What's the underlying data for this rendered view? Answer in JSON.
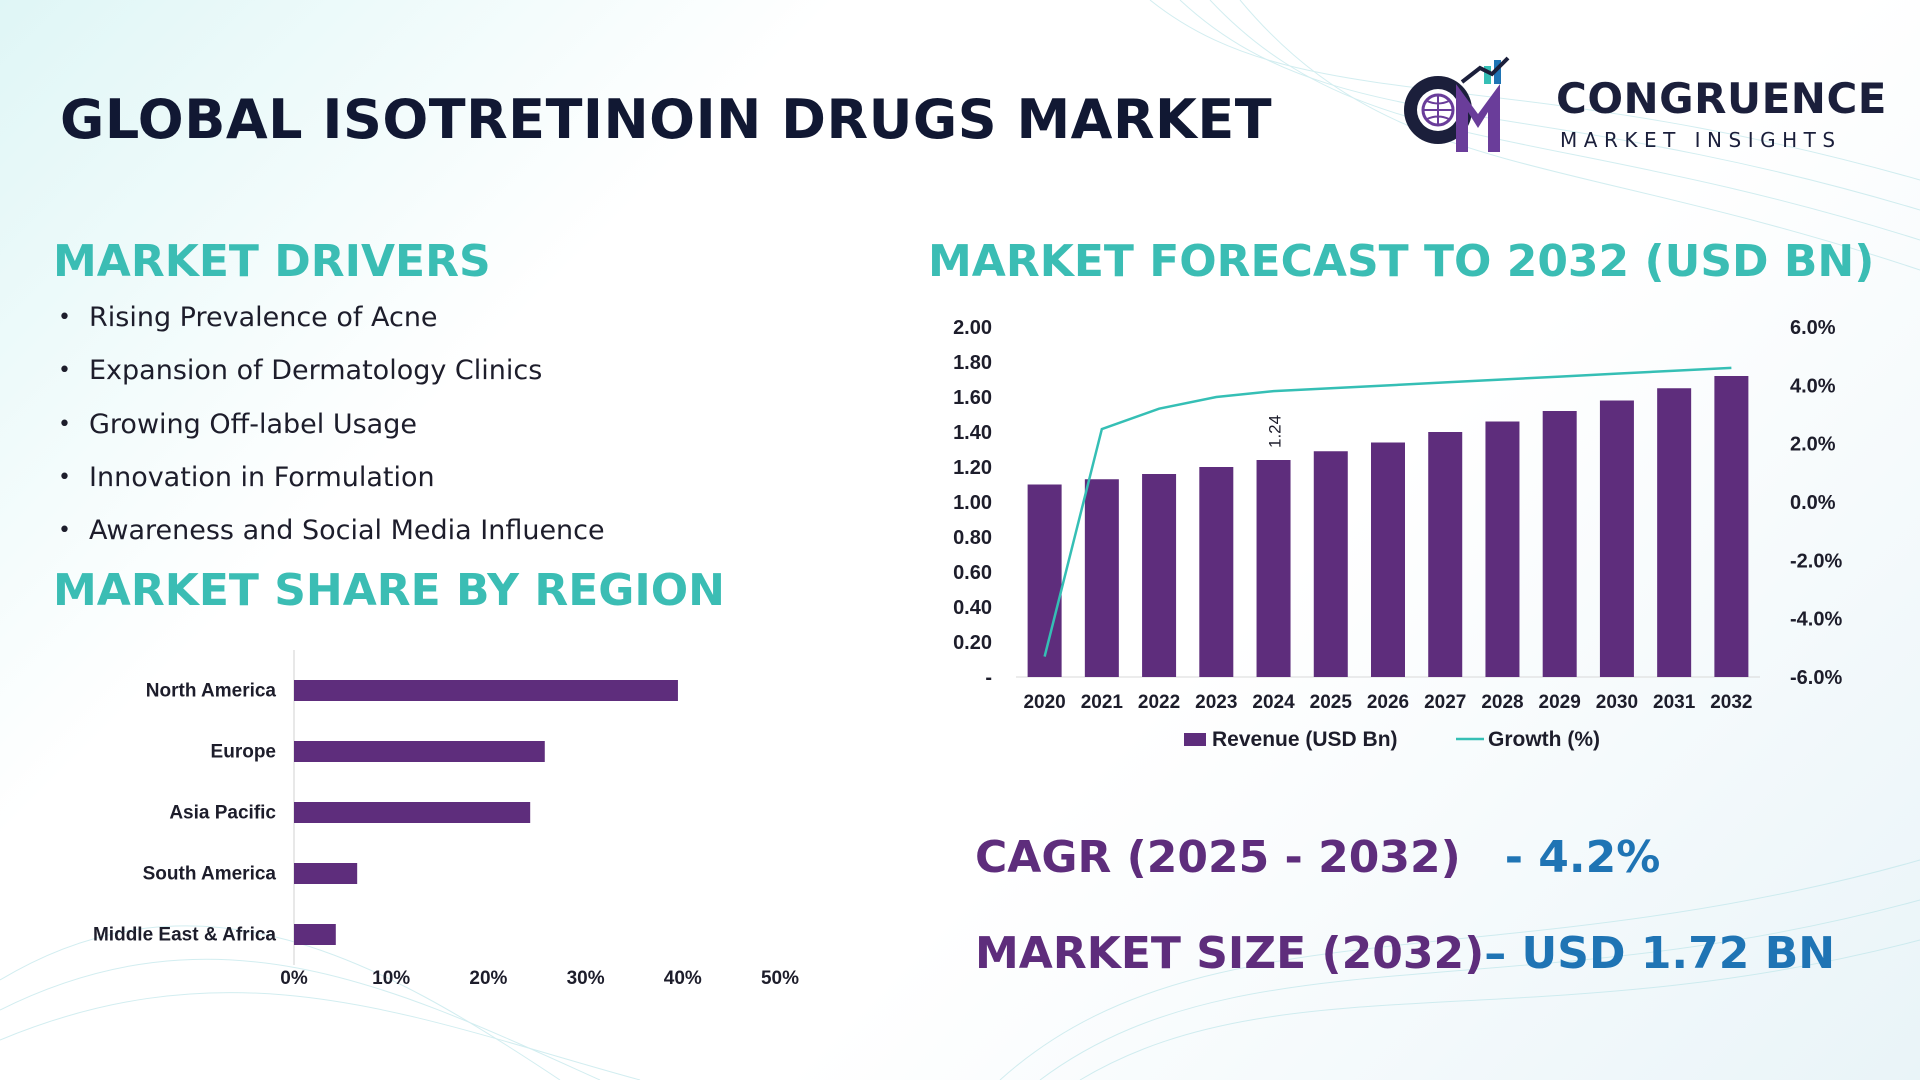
{
  "page_title": "GLOBAL ISOTRETINOIN DRUGS MARKET",
  "logo": {
    "name": "CONGRUENCE",
    "tagline": "MARKET INSIGHTS",
    "mark_text": "CM"
  },
  "colors": {
    "bar": "#5e2d7c",
    "growth_line": "#35bfb5",
    "section_title": "#3bbdb4",
    "kpi_label": "#5e2d7c",
    "kpi_value": "#1f74b4",
    "title": "#111833"
  },
  "drivers": {
    "title": "MARKET DRIVERS",
    "items": [
      "Rising Prevalence of Acne",
      "Expansion of Dermatology Clinics",
      "Growing Off-label Usage",
      "Innovation in Formulation",
      "Awareness and Social Media Influence"
    ]
  },
  "region_section_title": "MARKET SHARE BY REGION",
  "forecast_section_title": "MARKET FORECAST TO 2032 (USD BN)",
  "kpis": {
    "cagr_label": "CAGR (2025 - 2032)",
    "cagr_value": "- 4.2%",
    "size_label": "MARKET SIZE (2032)",
    "size_value": "– USD 1.72 BN"
  },
  "chart_data": [
    {
      "type": "bar",
      "orientation": "horizontal",
      "categories": [
        "North America",
        "Europe",
        "Asia Pacific",
        "South America",
        "Middle East & Africa"
      ],
      "values": [
        39.5,
        25.8,
        24.3,
        6.5,
        4.3
      ],
      "x_ticks": [
        "0%",
        "10%",
        "20%",
        "30%",
        "40%",
        "50%"
      ],
      "xlim": [
        0,
        50
      ],
      "unit": "%"
    },
    {
      "type": "bar+line",
      "categories": [
        "2020",
        "2021",
        "2022",
        "2023",
        "2024",
        "2025",
        "2026",
        "2027",
        "2028",
        "2029",
        "2030",
        "2031",
        "2032"
      ],
      "series": [
        {
          "name": "Revenue (USD Bn)",
          "type": "bar",
          "axis": "left",
          "values": [
            1.1,
            1.13,
            1.16,
            1.2,
            1.24,
            1.29,
            1.34,
            1.4,
            1.46,
            1.52,
            1.58,
            1.65,
            1.72
          ]
        },
        {
          "name": "Growth (%)",
          "type": "line",
          "axis": "right",
          "values": [
            -5.3,
            2.5,
            3.2,
            3.6,
            3.8,
            3.9,
            4.0,
            4.1,
            4.2,
            4.3,
            4.4,
            4.5,
            4.6
          ]
        }
      ],
      "y_left_ticks": [
        "-",
        "0.20",
        "0.40",
        "0.60",
        "0.80",
        "1.00",
        "1.20",
        "1.40",
        "1.60",
        "1.80",
        "2.00"
      ],
      "ylim_left": [
        0,
        2
      ],
      "y_right_ticks": [
        "-6.0%",
        "-4.0%",
        "-2.0%",
        "0.0%",
        "2.0%",
        "4.0%",
        "6.0%"
      ],
      "ylim_right": [
        -6,
        6
      ],
      "data_labels": [
        {
          "category": "2024",
          "text": "1.24"
        }
      ],
      "legend": "bottom"
    }
  ]
}
